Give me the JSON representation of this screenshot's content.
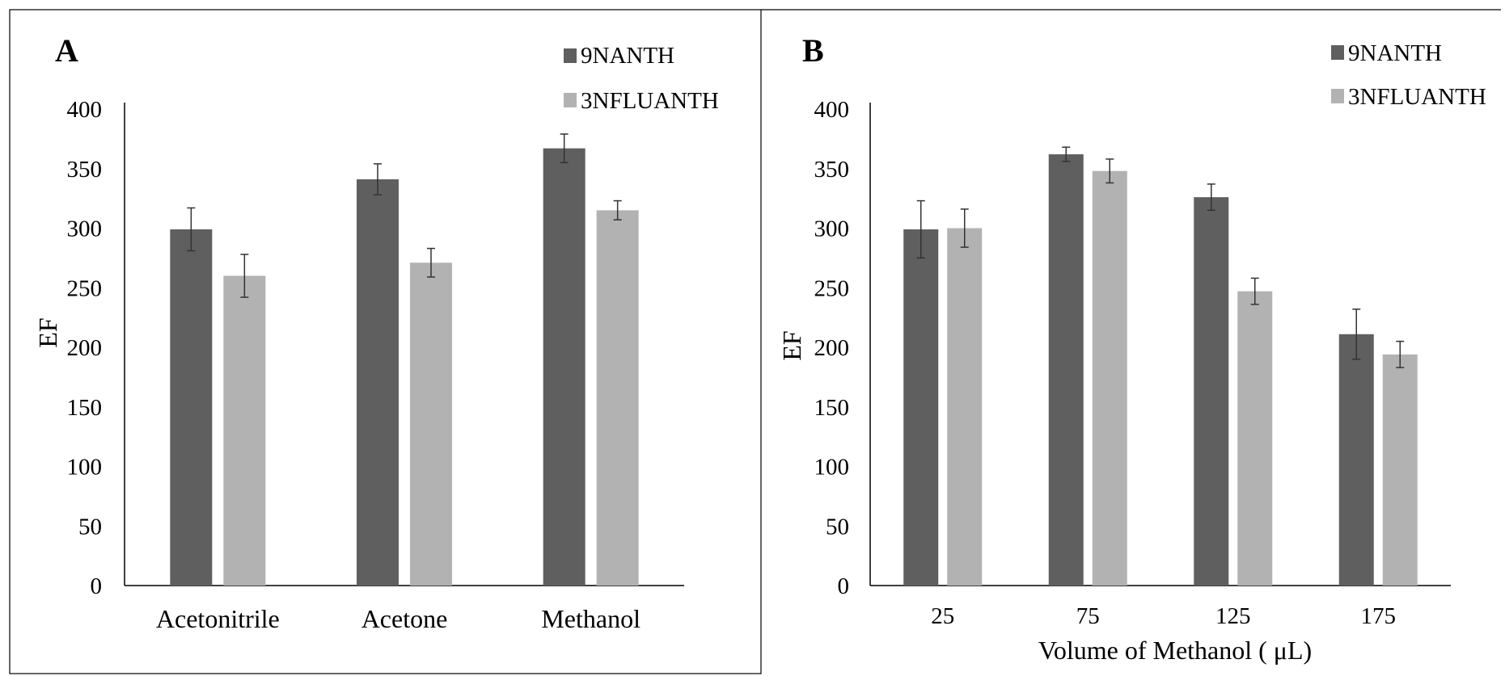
{
  "colors": {
    "series1": "#5f5f5f",
    "series2": "#b2b2b2",
    "axis": "#000000",
    "error_bar": "#333333"
  },
  "chart_data": [
    {
      "type": "bar",
      "panel_label": "A",
      "categories": [
        "Acetonitrile",
        "Acetone",
        "Methanol"
      ],
      "series": [
        {
          "name": "9NANTH",
          "values": [
            299,
            341,
            367
          ],
          "errors": [
            18,
            13,
            12
          ]
        },
        {
          "name": "3NFLUANTH",
          "values": [
            260,
            271,
            315
          ],
          "errors": [
            18,
            12,
            8
          ]
        }
      ],
      "xlabel": "",
      "ylabel": "EF",
      "ylim": [
        0,
        400
      ],
      "yticks": [
        "0",
        "50",
        "100",
        "150",
        "200",
        "250",
        "300",
        "350",
        "400"
      ],
      "grid": false,
      "legend": "top-right"
    },
    {
      "type": "bar",
      "panel_label": "B",
      "categories": [
        "25",
        "75",
        "125",
        "175"
      ],
      "series": [
        {
          "name": "9NANTH",
          "values": [
            299,
            362,
            326,
            211
          ],
          "errors": [
            24,
            6,
            11,
            21
          ]
        },
        {
          "name": "3NFLUANTH",
          "values": [
            300,
            348,
            247,
            194
          ],
          "errors": [
            16,
            10,
            11,
            11
          ]
        }
      ],
      "xlabel": "Volume of Methanol ( μL)",
      "ylabel": "EF",
      "ylim": [
        0,
        400
      ],
      "yticks": [
        "0",
        "50",
        "100",
        "150",
        "200",
        "250",
        "300",
        "350",
        "400"
      ],
      "grid": false,
      "legend": "top-right"
    }
  ]
}
